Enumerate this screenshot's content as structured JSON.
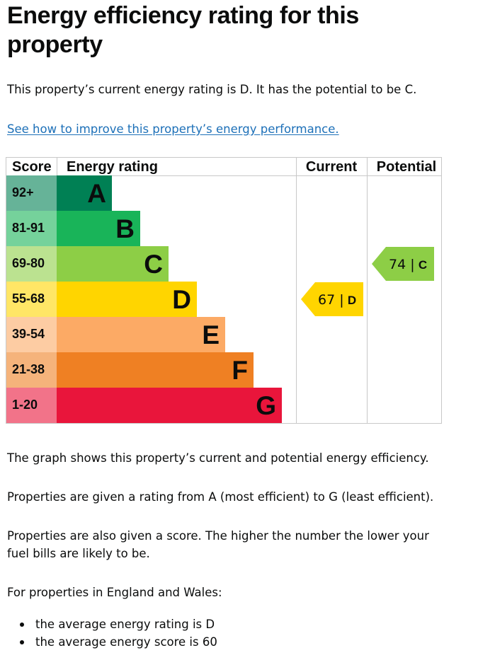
{
  "page": {
    "title": "Energy efficiency rating for this property",
    "intro": "This property’s current energy rating is D. It has the potential to be C.",
    "improve_link": "See how to improve this property’s energy performance.",
    "para_graph": "The graph shows this property’s current and potential energy efficiency.",
    "para_rating": "Properties are given a rating from A (most efficient) to G (least efficient).",
    "para_score": "Properties are also given a score. The higher the number the lower your fuel bills are likely to be.",
    "para_region": "For properties in England and Wales:",
    "bullets": [
      "the average energy rating is D",
      "the average energy score is 60"
    ]
  },
  "chart_data": {
    "type": "bar",
    "headers": {
      "score": "Score",
      "rating": "Energy rating",
      "current": "Current",
      "potential": "Potential"
    },
    "bands": [
      {
        "letter": "A",
        "range": "92+",
        "min": 92,
        "max": 100,
        "color": "#008054",
        "label_bg": "#66b398"
      },
      {
        "letter": "B",
        "range": "81-91",
        "min": 81,
        "max": 91,
        "color": "#19b459",
        "label_bg": "#75d29b"
      },
      {
        "letter": "C",
        "range": "69-80",
        "min": 69,
        "max": 80,
        "color": "#8dce46",
        "label_bg": "#bbe290"
      },
      {
        "letter": "D",
        "range": "55-68",
        "min": 55,
        "max": 68,
        "color": "#ffd500",
        "label_bg": "#ffe666"
      },
      {
        "letter": "E",
        "range": "39-54",
        "min": 39,
        "max": 54,
        "color": "#fcaa65",
        "label_bg": "#fdcca3"
      },
      {
        "letter": "F",
        "range": "21-38",
        "min": 21,
        "max": 38,
        "color": "#ef8023",
        "label_bg": "#f5b37b"
      },
      {
        "letter": "G",
        "range": "1-20",
        "min": 1,
        "max": 20,
        "color": "#e9153b",
        "label_bg": "#f27389"
      }
    ],
    "current": {
      "score": 67,
      "letter": "D",
      "color": "#ffd500"
    },
    "potential": {
      "score": 74,
      "letter": "C",
      "color": "#8dce46"
    }
  }
}
